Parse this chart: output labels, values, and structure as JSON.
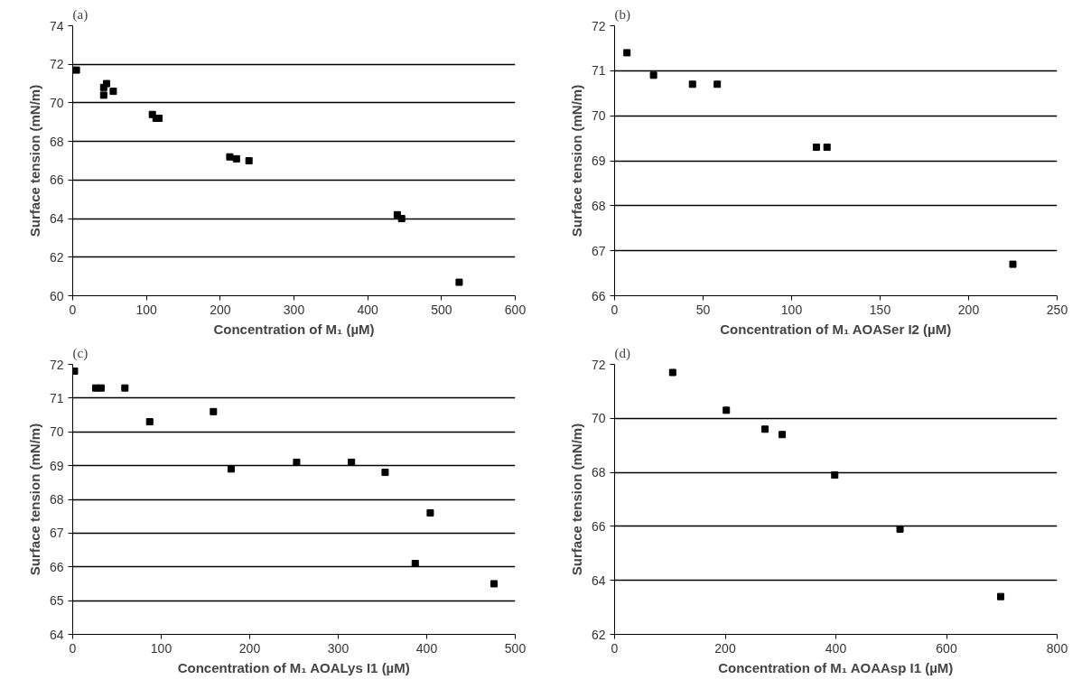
{
  "chart_data": [
    {
      "type": "scatter",
      "title": "(a)",
      "xlabel": "Concentration of M₁ (µM)",
      "ylabel": "Surface tension (mN/m)",
      "x": [
        5,
        42,
        42,
        46,
        55,
        108,
        113,
        117,
        213,
        222,
        239,
        440,
        446,
        524
      ],
      "series": [
        {
          "color": "#000000",
          "values": [
            71.7,
            70.4,
            70.8,
            71.0,
            70.6,
            69.4,
            69.2,
            69.2,
            67.2,
            67.1,
            67.0,
            64.2,
            64.0,
            60.7
          ]
        }
      ],
      "xlim": [
        0,
        600
      ],
      "xticks": [
        0,
        100,
        200,
        300,
        400,
        500,
        600
      ],
      "ylim": [
        60,
        74
      ],
      "yticks": [
        60,
        62,
        64,
        66,
        68,
        70,
        72,
        74
      ],
      "grid": "y",
      "marker": "square"
    },
    {
      "type": "scatter",
      "title": "(b)",
      "xlabel": "Concentration of M₁ AOASer I2 (µM)",
      "ylabel": "Surface tension (mN/m)",
      "x": [
        7,
        22,
        44,
        58,
        114,
        120,
        225
      ],
      "series": [
        {
          "color": "#000000",
          "values": [
            71.4,
            70.9,
            70.7,
            70.7,
            69.3,
            69.3,
            66.7
          ]
        }
      ],
      "xlim": [
        0,
        250
      ],
      "xticks": [
        0,
        50,
        100,
        150,
        200,
        250
      ],
      "ylim": [
        66,
        72
      ],
      "yticks": [
        66,
        67,
        68,
        69,
        70,
        71,
        72
      ],
      "grid": "y",
      "marker": "square"
    },
    {
      "type": "scatter",
      "title": "(c)",
      "xlabel": "Concentration of M₁ AOALys I1 (µM)",
      "ylabel": "Surface tension (mN/m)",
      "x": [
        2,
        26,
        32,
        59,
        87,
        159,
        179,
        253,
        315,
        353,
        387,
        404,
        476
      ],
      "series": [
        {
          "color": "#000000",
          "values": [
            71.8,
            71.3,
            71.3,
            71.3,
            70.3,
            70.6,
            68.9,
            69.1,
            69.1,
            68.8,
            66.1,
            67.6,
            65.5
          ]
        }
      ],
      "xlim": [
        0,
        500
      ],
      "xticks": [
        0,
        100,
        200,
        300,
        400,
        500
      ],
      "ylim": [
        64,
        72
      ],
      "yticks": [
        64,
        65,
        66,
        67,
        68,
        69,
        70,
        71,
        72
      ],
      "grid": "y",
      "marker": "square"
    },
    {
      "type": "scatter",
      "title": "(d)",
      "xlabel": "Concentration of M₁ AOAAsp I1 (µM)",
      "ylabel": "Surface tension (mN/m)",
      "x": [
        105,
        202,
        272,
        303,
        398,
        516,
        698
      ],
      "series": [
        {
          "color": "#000000",
          "values": [
            71.7,
            70.3,
            69.6,
            69.4,
            67.9,
            65.9,
            63.4
          ]
        }
      ],
      "xlim": [
        0,
        800
      ],
      "xticks": [
        0,
        200,
        400,
        600,
        800
      ],
      "ylim": [
        62,
        72
      ],
      "yticks": [
        62,
        64,
        66,
        68,
        70,
        72
      ],
      "grid": "y",
      "marker": "square"
    }
  ]
}
